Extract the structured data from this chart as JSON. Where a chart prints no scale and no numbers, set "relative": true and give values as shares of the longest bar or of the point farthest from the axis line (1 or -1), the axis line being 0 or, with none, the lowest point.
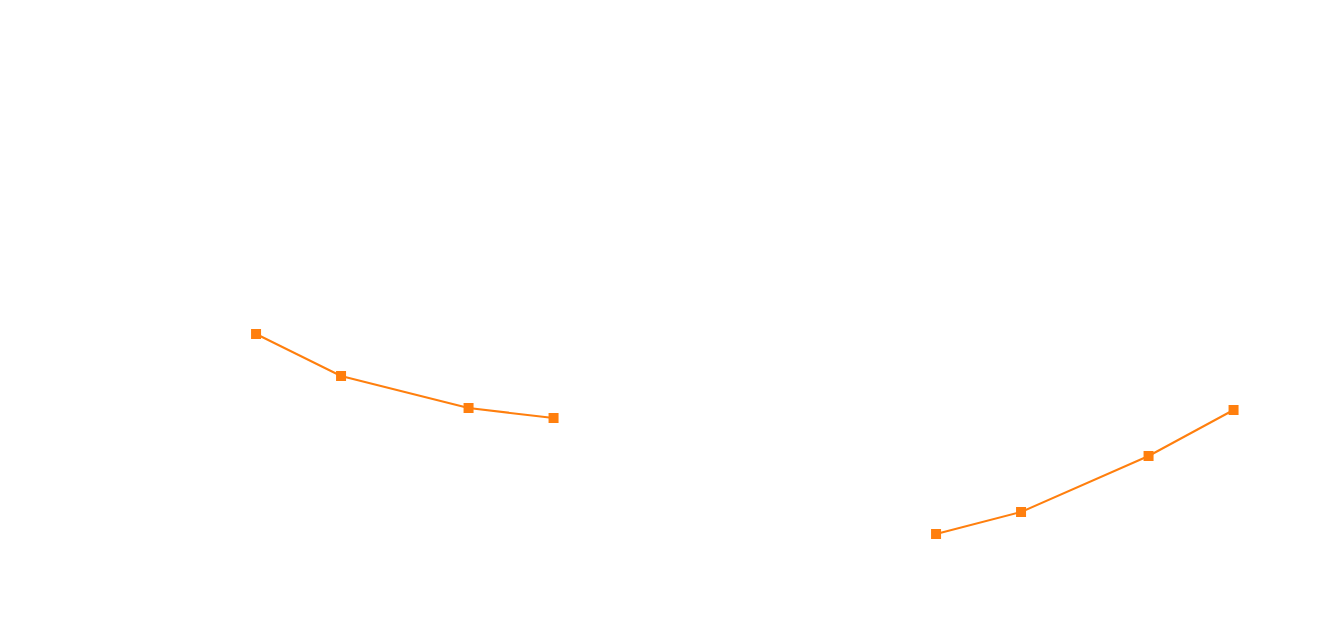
{
  "chart_data": {
    "type": "line",
    "relative": true,
    "marker": "square",
    "categories": [
      null,
      null,
      null,
      null,
      null,
      null,
      null,
      null,
      null,
      null,
      null,
      null,
      null,
      null,
      null,
      null,
      null,
      null,
      null,
      null,
      null,
      null,
      null,
      null
    ],
    "series": [
      {
        "color": "#ff7f0e",
        "values": [
          1,
          null,
          0.79,
          null,
          null,
          0.63,
          null,
          0.58,
          null,
          null,
          null,
          null,
          null,
          null,
          null,
          null,
          null,
          null,
          null,
          null,
          null,
          null,
          null,
          null
        ]
      },
      {
        "color": "#ff7f0e",
        "values": [
          null,
          null,
          null,
          null,
          null,
          null,
          null,
          null,
          null,
          null,
          null,
          null,
          null,
          null,
          null,
          null,
          0,
          null,
          0.11,
          null,
          null,
          0.39,
          null,
          0.62
        ]
      }
    ]
  }
}
